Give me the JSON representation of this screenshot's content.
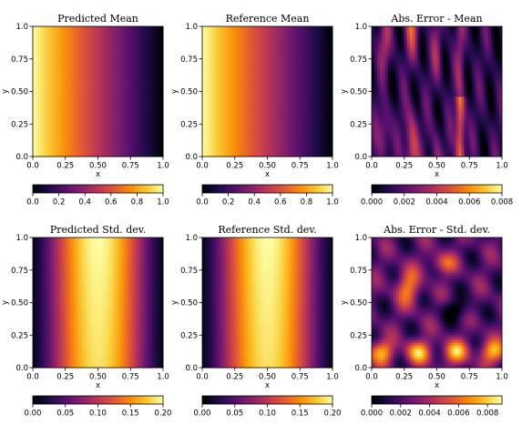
{
  "chart_data": [
    {
      "type": "heatmap",
      "title": "Predicted Mean",
      "xlabel": "x",
      "ylabel": "y",
      "xlim": [
        0,
        1
      ],
      "ylim": [
        0,
        1
      ],
      "x_ticks": [
        "0.0",
        "0.25",
        "0.50",
        "0.75",
        "1.0"
      ],
      "y_ticks": [
        "0.0",
        "0.25",
        "0.50",
        "0.75",
        "1.0"
      ],
      "colormap": "inferno",
      "field": "mean",
      "colorbar": {
        "range": [
          0,
          1
        ],
        "ticks": [
          "0.0",
          "0.2",
          "0.4",
          "0.6",
          "0.8",
          "1.0"
        ]
      }
    },
    {
      "type": "heatmap",
      "title": "Reference Mean",
      "xlabel": "x",
      "ylabel": "y",
      "xlim": [
        0,
        1
      ],
      "ylim": [
        0,
        1
      ],
      "x_ticks": [
        "0.0",
        "0.25",
        "0.50",
        "0.75",
        "1.0"
      ],
      "y_ticks": [
        "0.0",
        "0.25",
        "0.50",
        "0.75",
        "1.0"
      ],
      "colormap": "inferno",
      "field": "mean",
      "colorbar": {
        "range": [
          0,
          1
        ],
        "ticks": [
          "0.0",
          "0.2",
          "0.4",
          "0.6",
          "0.8",
          "1.0"
        ]
      }
    },
    {
      "type": "heatmap",
      "title": "Abs. Error - Mean",
      "xlabel": "x",
      "ylabel": "y",
      "xlim": [
        0,
        1
      ],
      "ylim": [
        0,
        1
      ],
      "x_ticks": [
        "0.0",
        "0.25",
        "0.50",
        "0.75",
        "1.0"
      ],
      "y_ticks": [
        "0.0",
        "0.25",
        "0.50",
        "0.75",
        "1.0"
      ],
      "colormap": "inferno",
      "field": "err_mean",
      "colorbar": {
        "range": [
          0,
          0.008
        ],
        "ticks": [
          "0.000",
          "0.002",
          "0.004",
          "0.006",
          "0.008"
        ]
      }
    },
    {
      "type": "heatmap",
      "title": "Predicted Std. dev.",
      "xlabel": "x",
      "ylabel": "y",
      "xlim": [
        0,
        1
      ],
      "ylim": [
        0,
        1
      ],
      "x_ticks": [
        "0.0",
        "0.25",
        "0.50",
        "0.75",
        "1.0"
      ],
      "y_ticks": [
        "0.0",
        "0.25",
        "0.50",
        "0.75",
        "1.0"
      ],
      "colormap": "inferno",
      "field": "std",
      "colorbar": {
        "range": [
          0,
          0.2
        ],
        "ticks": [
          "0.00",
          "0.05",
          "0.10",
          "0.15",
          "0.20"
        ]
      }
    },
    {
      "type": "heatmap",
      "title": "Reference Std. dev.",
      "xlabel": "x",
      "ylabel": "y",
      "xlim": [
        0,
        1
      ],
      "ylim": [
        0,
        1
      ],
      "x_ticks": [
        "0.0",
        "0.25",
        "0.50",
        "0.75",
        "1.0"
      ],
      "y_ticks": [
        "0.0",
        "0.25",
        "0.50",
        "0.75",
        "1.0"
      ],
      "colormap": "inferno",
      "field": "std",
      "colorbar": {
        "range": [
          0,
          0.2
        ],
        "ticks": [
          "0.00",
          "0.05",
          "0.10",
          "0.15",
          "0.20"
        ]
      }
    },
    {
      "type": "heatmap",
      "title": "Abs. Error - Std. dev.",
      "xlabel": "x",
      "ylabel": "y",
      "xlim": [
        0,
        1
      ],
      "ylim": [
        0,
        1
      ],
      "x_ticks": [
        "0.0",
        "0.25",
        "0.50",
        "0.75",
        "1.0"
      ],
      "y_ticks": [
        "0.0",
        "0.25",
        "0.50",
        "0.75",
        "1.0"
      ],
      "colormap": "inferno",
      "field": "err_std",
      "colorbar": {
        "range": [
          0,
          0.009
        ],
        "ticks": [
          "0.000",
          "0.002",
          "0.004",
          "0.006",
          "0.008"
        ]
      }
    }
  ]
}
